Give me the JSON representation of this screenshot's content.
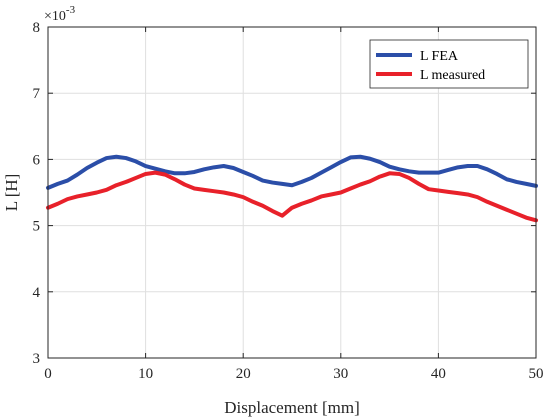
{
  "chart_data": {
    "type": "line",
    "title": "",
    "xlabel": "Displacement [mm]",
    "ylabel": "L [H]",
    "y_multiplier_label": "×10",
    "y_multiplier_exp": "-3",
    "xlim": [
      0,
      50
    ],
    "ylim": [
      3,
      8
    ],
    "xticks": [
      0,
      10,
      20,
      30,
      40,
      50
    ],
    "yticks": [
      3,
      4,
      5,
      6,
      7,
      8
    ],
    "grid": true,
    "legend_position": "top-right",
    "series": [
      {
        "name": "L FEA",
        "color": "#2b4ea8",
        "x": [
          0,
          1,
          2,
          3,
          4,
          5,
          6,
          7,
          8,
          9,
          10,
          11,
          12,
          13,
          14,
          15,
          16,
          17,
          18,
          19,
          20,
          21,
          22,
          23,
          24,
          25,
          26,
          27,
          28,
          29,
          30,
          31,
          32,
          33,
          34,
          35,
          36,
          37,
          38,
          39,
          40,
          41,
          42,
          43,
          44,
          45,
          46,
          47,
          48,
          49,
          50
        ],
        "y": [
          5.57,
          5.63,
          5.68,
          5.77,
          5.87,
          5.95,
          6.02,
          6.04,
          6.02,
          5.97,
          5.9,
          5.86,
          5.82,
          5.79,
          5.79,
          5.81,
          5.85,
          5.88,
          5.9,
          5.87,
          5.81,
          5.75,
          5.68,
          5.65,
          5.63,
          5.61,
          5.66,
          5.72,
          5.8,
          5.88,
          5.96,
          6.03,
          6.04,
          6.01,
          5.96,
          5.89,
          5.85,
          5.82,
          5.8,
          5.8,
          5.8,
          5.84,
          5.88,
          5.9,
          5.9,
          5.85,
          5.78,
          5.7,
          5.66,
          5.63,
          5.6
        ]
      },
      {
        "name": "L measured",
        "color": "#e8212a",
        "x": [
          0,
          1,
          2,
          3,
          4,
          5,
          6,
          7,
          8,
          9,
          10,
          11,
          12,
          13,
          14,
          15,
          16,
          17,
          18,
          19,
          20,
          21,
          22,
          23,
          24,
          25,
          26,
          27,
          28,
          29,
          30,
          31,
          32,
          33,
          34,
          35,
          36,
          37,
          38,
          39,
          40,
          41,
          42,
          43,
          44,
          45,
          46,
          47,
          48,
          49,
          50
        ],
        "y": [
          5.27,
          5.33,
          5.4,
          5.44,
          5.47,
          5.5,
          5.54,
          5.61,
          5.66,
          5.72,
          5.78,
          5.8,
          5.77,
          5.7,
          5.62,
          5.56,
          5.54,
          5.52,
          5.5,
          5.47,
          5.43,
          5.36,
          5.3,
          5.22,
          5.15,
          5.27,
          5.33,
          5.38,
          5.44,
          5.47,
          5.5,
          5.56,
          5.62,
          5.67,
          5.74,
          5.79,
          5.78,
          5.72,
          5.63,
          5.55,
          5.53,
          5.51,
          5.49,
          5.47,
          5.43,
          5.36,
          5.3,
          5.24,
          5.18,
          5.12,
          5.08
        ]
      }
    ]
  }
}
